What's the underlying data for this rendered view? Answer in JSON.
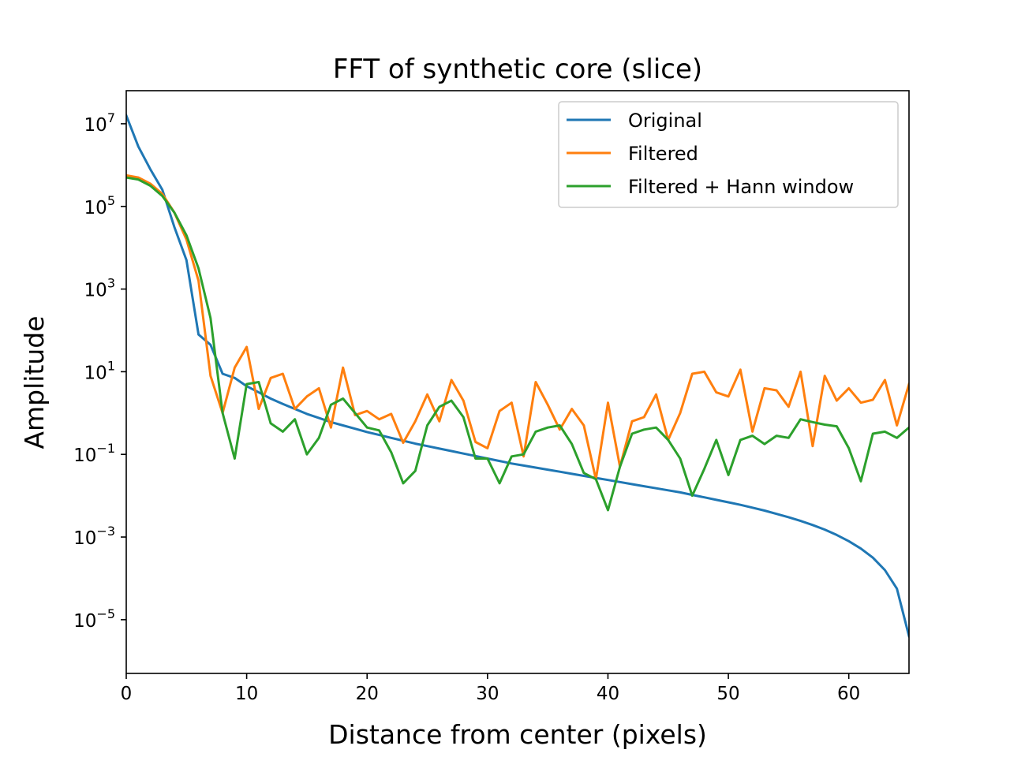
{
  "chart_data": {
    "type": "line",
    "title": "FFT of synthetic core (slice)",
    "xlabel": "Distance from center (pixels)",
    "ylabel": "Amplitude",
    "xlim": [
      0,
      65
    ],
    "ylim_log10": [
      -6.3,
      7.8
    ],
    "yscale": "log",
    "grid": false,
    "legend_position": "top-right",
    "x_ticks": [
      0,
      10,
      20,
      30,
      40,
      50,
      60
    ],
    "y_tick_exponents": [
      7,
      5,
      3,
      1,
      -1,
      -3,
      -5
    ],
    "series": [
      {
        "name": "Original",
        "color": "#1f77b4",
        "log10_values": [
          7.2,
          6.45,
          5.9,
          5.4,
          4.5,
          3.7,
          1.9,
          1.65,
          0.95,
          0.85,
          0.65,
          0.5,
          0.35,
          0.22,
          0.1,
          -0.02,
          -0.12,
          -0.22,
          -0.3,
          -0.38,
          -0.46,
          -0.53,
          -0.6,
          -0.67,
          -0.74,
          -0.8,
          -0.86,
          -0.92,
          -0.98,
          -1.04,
          -1.1,
          -1.16,
          -1.22,
          -1.27,
          -1.32,
          -1.37,
          -1.42,
          -1.47,
          -1.52,
          -1.57,
          -1.62,
          -1.67,
          -1.72,
          -1.77,
          -1.82,
          -1.87,
          -1.92,
          -1.98,
          -2.04,
          -2.1,
          -2.16,
          -2.22,
          -2.29,
          -2.36,
          -2.44,
          -2.52,
          -2.61,
          -2.71,
          -2.82,
          -2.95,
          -3.1,
          -3.28,
          -3.5,
          -3.8,
          -4.25,
          -5.4
        ]
      },
      {
        "name": "Filtered",
        "color": "#ff7f0e",
        "log10_values": [
          5.75,
          5.7,
          5.55,
          5.3,
          4.85,
          4.2,
          3.2,
          0.9,
          0.0,
          1.1,
          1.6,
          0.1,
          0.85,
          0.95,
          0.1,
          0.4,
          0.6,
          -0.35,
          1.1,
          -0.05,
          0.05,
          -0.15,
          -0.02,
          -0.72,
          -0.2,
          0.45,
          -0.2,
          0.8,
          0.3,
          -0.7,
          -0.85,
          0.05,
          0.25,
          -1.05,
          0.75,
          0.2,
          -0.4,
          0.1,
          -0.3,
          -1.6,
          0.25,
          -1.3,
          -0.2,
          -0.1,
          0.45,
          -0.65,
          0.0,
          0.95,
          1.0,
          0.5,
          0.4,
          1.05,
          -0.45,
          0.6,
          0.55,
          0.15,
          1.0,
          -0.8,
          0.9,
          0.3,
          0.6,
          0.25,
          0.32,
          0.8,
          -0.3,
          0.7
        ]
      },
      {
        "name": "Filtered + Hann window",
        "color": "#2ca02c",
        "log10_values": [
          5.7,
          5.65,
          5.5,
          5.25,
          4.85,
          4.3,
          3.5,
          2.3,
          0.0,
          -1.1,
          0.7,
          0.75,
          -0.25,
          -0.45,
          -0.15,
          -1.0,
          -0.6,
          0.2,
          0.35,
          0.0,
          -0.35,
          -0.42,
          -0.95,
          -1.7,
          -1.4,
          -0.3,
          0.15,
          0.3,
          -0.1,
          -1.1,
          -1.1,
          -1.7,
          -1.05,
          -1.0,
          -0.45,
          -0.35,
          -0.3,
          -0.75,
          -1.45,
          -1.6,
          -2.35,
          -1.3,
          -0.5,
          -0.4,
          -0.35,
          -0.65,
          -1.1,
          -2.0,
          -1.35,
          -0.65,
          -1.5,
          -0.65,
          -0.55,
          -0.75,
          -0.55,
          -0.6,
          -0.15,
          -0.22,
          -0.28,
          -0.32,
          -0.85,
          -1.65,
          -0.5,
          -0.45,
          -0.6,
          -0.35
        ]
      }
    ]
  }
}
